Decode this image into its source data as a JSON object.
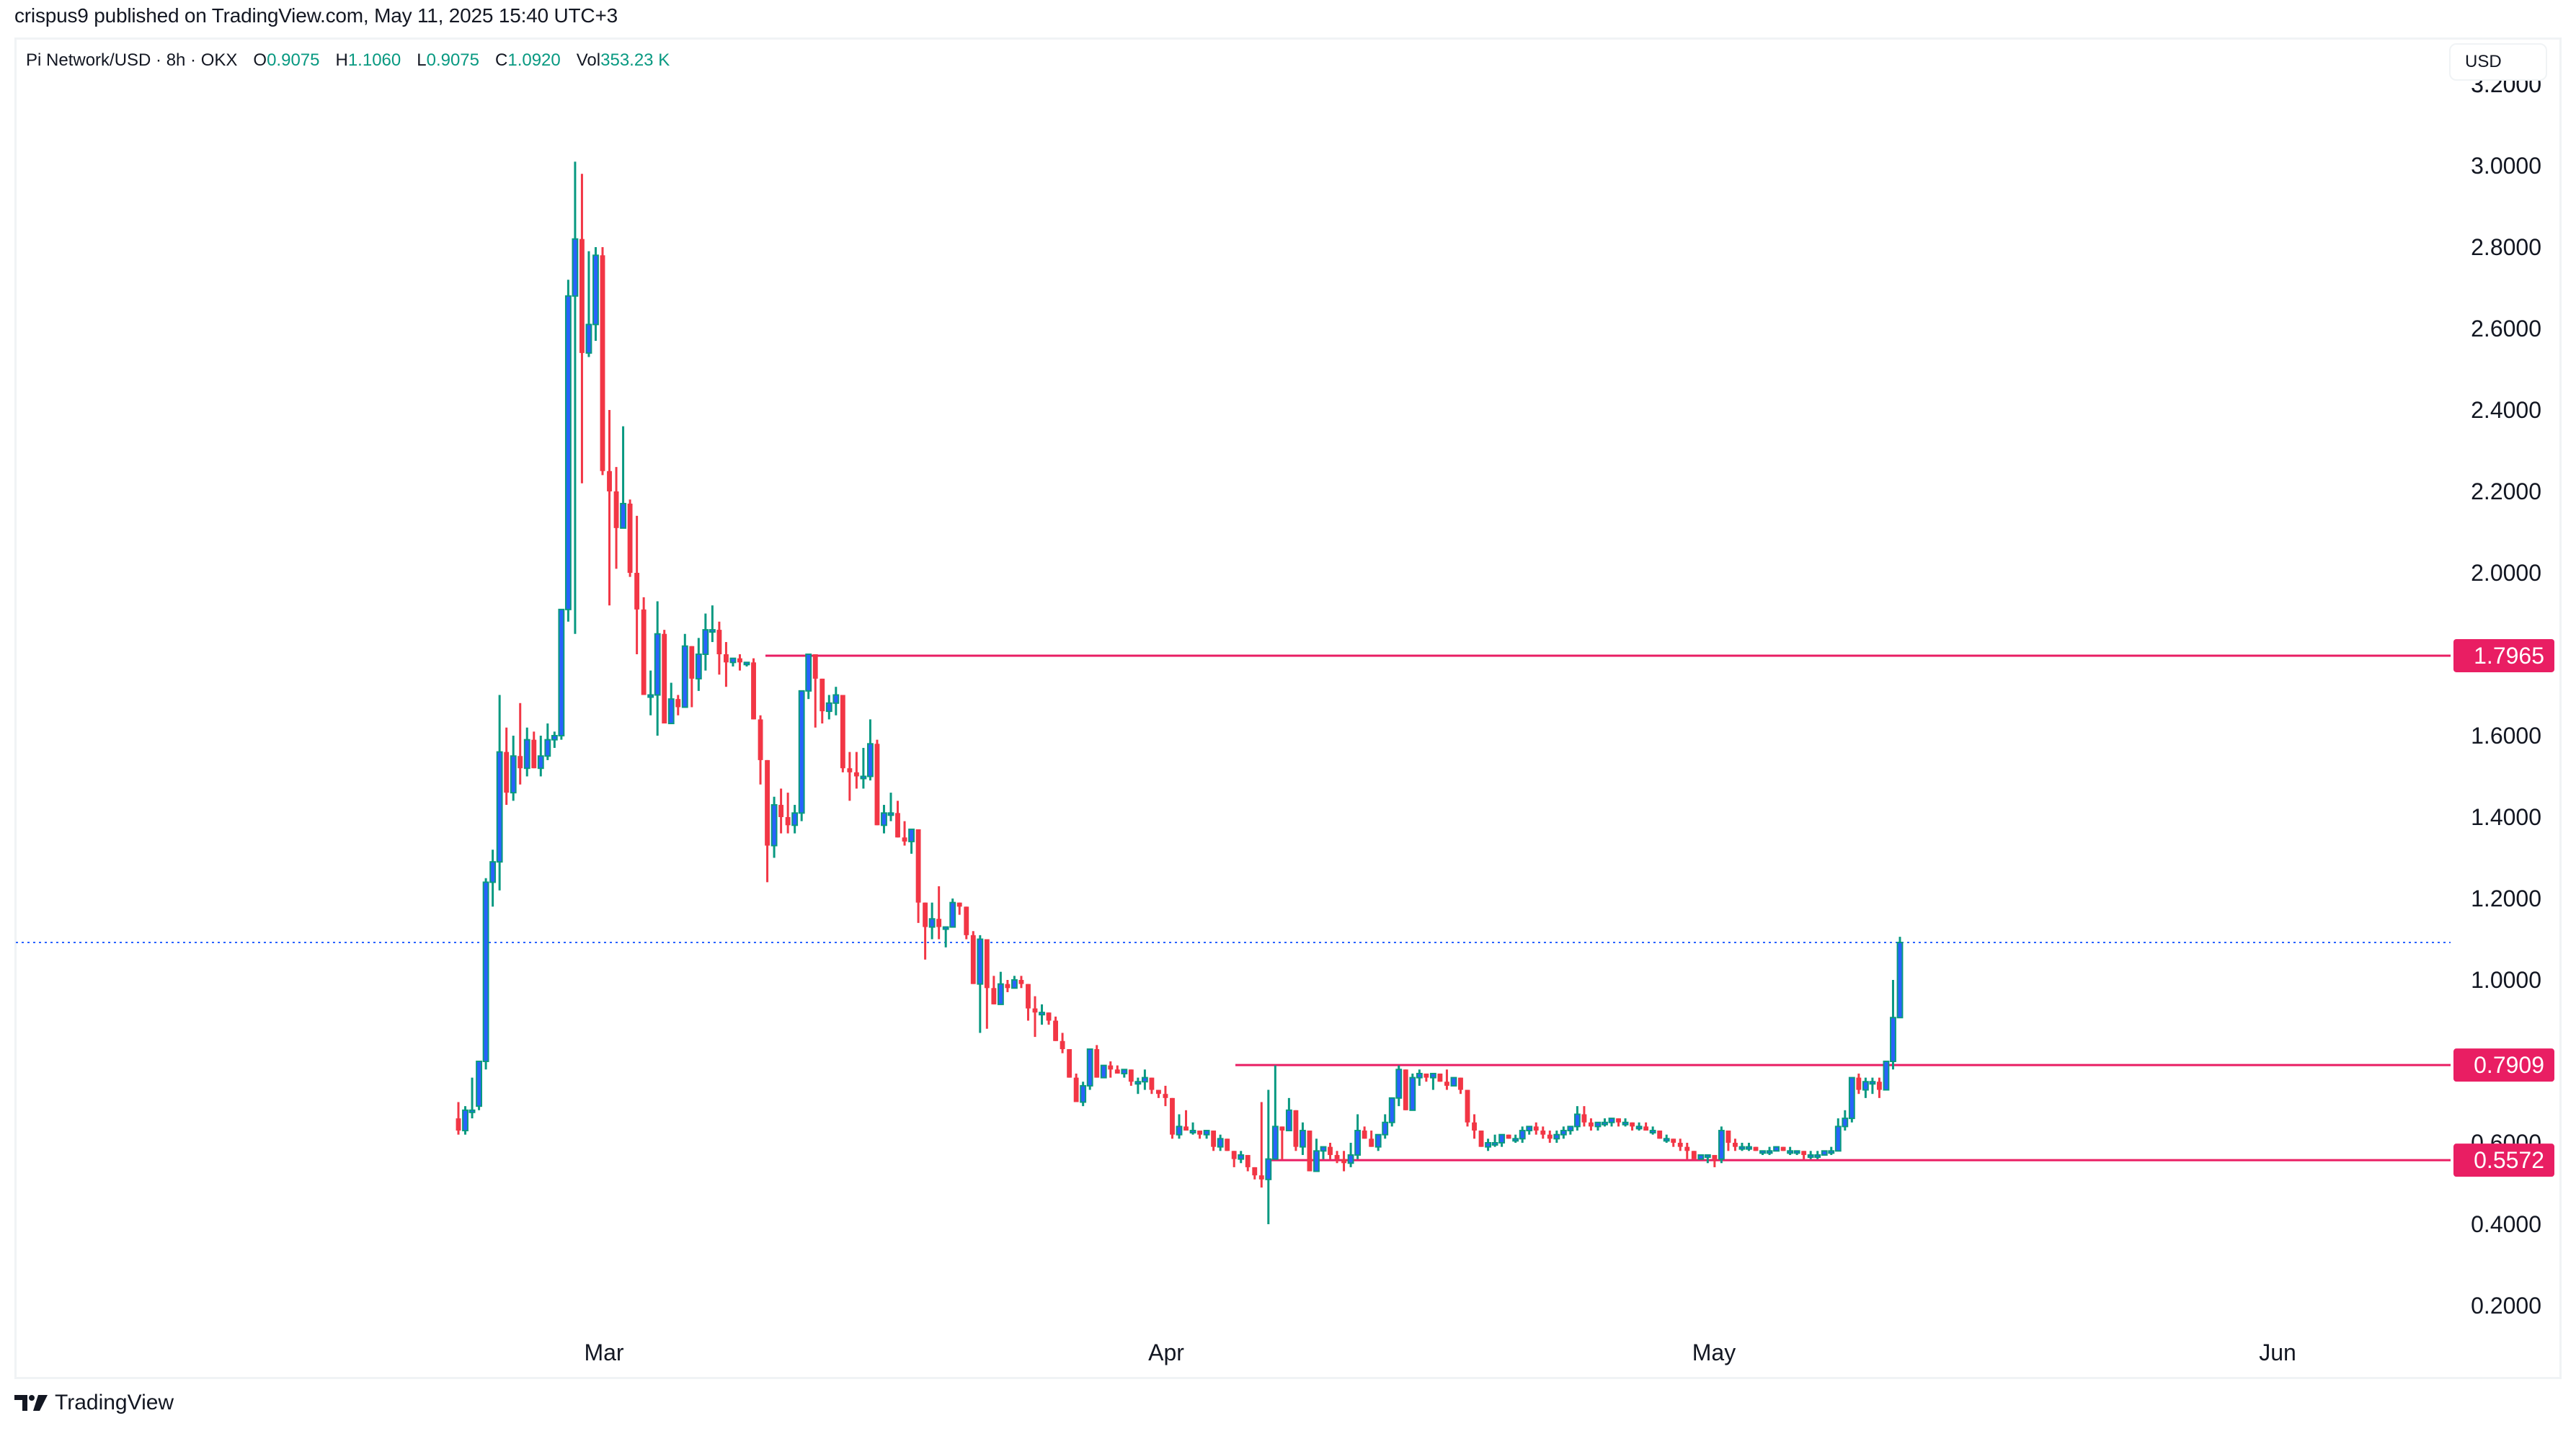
{
  "header": {
    "published": "crispus9 published on TradingView.com, May 11, 2025 15:40 UTC+3"
  },
  "legend": {
    "symbol": "Pi Network/USD · 8h · OKX",
    "o_label": "O",
    "o_value": "0.9075",
    "h_label": "H",
    "h_value": "1.1060",
    "l_label": "L",
    "l_value": "0.9075",
    "c_label": "C",
    "c_value": "1.0920",
    "vol_label": "Vol",
    "vol_value": "353.23 K"
  },
  "currency_button": "USD",
  "brand": {
    "name": "TradingView",
    "icon": "tradingview-logo-icon"
  },
  "colors": {
    "bull_body": "#2962ff",
    "bull_wick": "#089981",
    "bear": "#f23645",
    "level_line": "#e91e63",
    "last_price_line": "#2962ff",
    "legend_value": "#089981"
  },
  "chart_data": {
    "type": "candlestick",
    "title": "Pi Network/USD · 8h · OKX",
    "xlabel": "",
    "ylabel": "USD",
    "ylim": [
      0.2,
      3.2
    ],
    "y_ticks": [
      "3.2000",
      "3.0000",
      "2.8000",
      "2.6000",
      "2.4000",
      "2.2000",
      "2.0000",
      "1.6000",
      "1.4000",
      "1.2000",
      "1.0000",
      "0.6000",
      "0.4000",
      "0.2000"
    ],
    "x_ticks": [
      "Mar",
      "Apr",
      "May",
      "Jun"
    ],
    "grid": false,
    "last_price": 1.092,
    "horizontal_levels": [
      {
        "label": "1.7965",
        "value": 1.7965
      },
      {
        "label": "0.7909",
        "value": 0.7909
      },
      {
        "label": "0.5572",
        "value": 0.5572
      }
    ],
    "ohlc_last": {
      "open": 0.9075,
      "high": 1.106,
      "low": 0.9075,
      "close": 1.092,
      "volume": "353.23K"
    },
    "candles": [
      [
        0.66,
        0.7,
        0.62,
        0.63
      ],
      [
        0.63,
        0.69,
        0.62,
        0.68
      ],
      [
        0.68,
        0.76,
        0.66,
        0.68
      ],
      [
        0.69,
        0.79,
        0.68,
        0.8
      ],
      [
        0.8,
        1.25,
        0.78,
        1.24
      ],
      [
        1.24,
        1.32,
        1.18,
        1.29
      ],
      [
        1.29,
        1.7,
        1.22,
        1.56
      ],
      [
        1.56,
        1.62,
        1.43,
        1.46
      ],
      [
        1.46,
        1.6,
        1.44,
        1.55
      ],
      [
        1.55,
        1.68,
        1.48,
        1.52
      ],
      [
        1.52,
        1.62,
        1.5,
        1.59
      ],
      [
        1.59,
        1.61,
        1.52,
        1.52
      ],
      [
        1.52,
        1.6,
        1.5,
        1.55
      ],
      [
        1.55,
        1.63,
        1.54,
        1.59
      ],
      [
        1.59,
        1.61,
        1.57,
        1.6
      ],
      [
        1.6,
        1.91,
        1.59,
        1.91
      ],
      [
        1.91,
        2.72,
        1.88,
        2.68
      ],
      [
        2.68,
        3.01,
        1.85,
        2.82
      ],
      [
        2.82,
        2.98,
        2.22,
        2.54
      ],
      [
        2.54,
        2.79,
        2.53,
        2.61
      ],
      [
        2.61,
        2.8,
        2.57,
        2.78
      ],
      [
        2.78,
        2.8,
        2.24,
        2.25
      ],
      [
        2.25,
        2.4,
        1.92,
        2.2
      ],
      [
        2.2,
        2.26,
        2.01,
        2.11
      ],
      [
        2.11,
        2.36,
        2.12,
        2.17
      ],
      [
        2.17,
        2.18,
        1.99,
        2.0
      ],
      [
        2.0,
        2.14,
        1.8,
        1.91
      ],
      [
        1.91,
        1.94,
        1.71,
        1.7
      ],
      [
        1.7,
        1.76,
        1.65,
        1.7
      ],
      [
        1.7,
        1.93,
        1.6,
        1.85
      ],
      [
        1.85,
        1.86,
        1.66,
        1.63
      ],
      [
        1.63,
        1.73,
        1.64,
        1.69
      ],
      [
        1.69,
        1.7,
        1.65,
        1.67
      ],
      [
        1.67,
        1.85,
        1.68,
        1.82
      ],
      [
        1.82,
        1.82,
        1.67,
        1.74
      ],
      [
        1.74,
        1.84,
        1.71,
        1.8
      ],
      [
        1.8,
        1.9,
        1.76,
        1.86
      ],
      [
        1.86,
        1.92,
        1.83,
        1.86
      ],
      [
        1.86,
        1.88,
        1.75,
        1.8
      ],
      [
        1.8,
        1.83,
        1.72,
        1.78
      ],
      [
        1.78,
        1.79,
        1.77,
        1.79
      ],
      [
        1.79,
        1.8,
        1.76,
        1.78
      ],
      [
        1.78,
        1.78,
        1.77,
        1.78
      ],
      [
        1.78,
        1.79,
        1.64,
        1.64
      ],
      [
        1.64,
        1.65,
        1.48,
        1.54
      ],
      [
        1.54,
        1.54,
        1.24,
        1.33
      ],
      [
        1.33,
        1.45,
        1.3,
        1.43
      ],
      [
        1.43,
        1.47,
        1.36,
        1.4
      ],
      [
        1.4,
        1.46,
        1.36,
        1.38
      ],
      [
        1.38,
        1.43,
        1.36,
        1.41
      ],
      [
        1.41,
        1.63,
        1.39,
        1.71
      ],
      [
        1.71,
        1.79,
        1.69,
        1.8
      ],
      [
        1.8,
        1.79,
        1.62,
        1.74
      ],
      [
        1.74,
        1.71,
        1.63,
        1.66
      ],
      [
        1.66,
        1.7,
        1.64,
        1.68
      ],
      [
        1.68,
        1.72,
        1.65,
        1.7
      ],
      [
        1.7,
        1.7,
        1.51,
        1.52
      ],
      [
        1.52,
        1.56,
        1.44,
        1.51
      ],
      [
        1.51,
        1.56,
        1.47,
        1.5
      ],
      [
        1.5,
        1.57,
        1.47,
        1.5
      ],
      [
        1.5,
        1.64,
        1.49,
        1.58
      ],
      [
        1.58,
        1.59,
        1.38,
        1.38
      ],
      [
        1.38,
        1.43,
        1.36,
        1.41
      ],
      [
        1.41,
        1.46,
        1.39,
        1.41
      ],
      [
        1.41,
        1.44,
        1.38,
        1.35
      ],
      [
        1.35,
        1.39,
        1.33,
        1.34
      ],
      [
        1.34,
        1.36,
        1.31,
        1.37
      ],
      [
        1.37,
        1.37,
        1.14,
        1.19
      ],
      [
        1.19,
        1.19,
        1.05,
        1.13
      ],
      [
        1.13,
        1.19,
        1.1,
        1.15
      ],
      [
        1.15,
        1.23,
        1.1,
        1.13
      ],
      [
        1.13,
        1.12,
        1.08,
        1.13
      ],
      [
        1.13,
        1.2,
        1.13,
        1.19
      ],
      [
        1.19,
        1.18,
        1.16,
        1.18
      ],
      [
        1.18,
        1.17,
        1.1,
        1.11
      ],
      [
        1.11,
        1.12,
        0.99,
        0.99
      ],
      [
        0.99,
        1.11,
        0.87,
        1.1
      ],
      [
        1.1,
        1.09,
        0.88,
        0.98
      ],
      [
        0.98,
        1.01,
        0.95,
        0.94
      ],
      [
        0.94,
        1.02,
        0.94,
        0.99
      ],
      [
        0.99,
        1.0,
        0.97,
        0.98
      ],
      [
        0.98,
        1.01,
        0.99,
        1.0
      ],
      [
        1.0,
        1.01,
        0.98,
        0.99
      ],
      [
        0.99,
        0.99,
        0.9,
        0.93
      ],
      [
        0.93,
        0.96,
        0.86,
        0.92
      ],
      [
        0.92,
        0.94,
        0.89,
        0.92
      ],
      [
        0.92,
        0.92,
        0.89,
        0.9
      ],
      [
        0.9,
        0.91,
        0.85,
        0.85
      ],
      [
        0.85,
        0.87,
        0.82,
        0.83
      ],
      [
        0.83,
        0.83,
        0.78,
        0.76
      ],
      [
        0.76,
        0.77,
        0.7,
        0.7
      ],
      [
        0.7,
        0.75,
        0.69,
        0.74
      ],
      [
        0.74,
        0.81,
        0.73,
        0.83
      ],
      [
        0.83,
        0.84,
        0.77,
        0.76
      ],
      [
        0.76,
        0.79,
        0.76,
        0.79
      ],
      [
        0.79,
        0.8,
        0.76,
        0.78
      ],
      [
        0.78,
        0.79,
        0.77,
        0.77
      ],
      [
        0.77,
        0.78,
        0.76,
        0.78
      ],
      [
        0.78,
        0.78,
        0.74,
        0.75
      ],
      [
        0.75,
        0.76,
        0.72,
        0.75
      ],
      [
        0.75,
        0.78,
        0.73,
        0.76
      ],
      [
        0.76,
        0.76,
        0.72,
        0.73
      ],
      [
        0.73,
        0.73,
        0.71,
        0.72
      ],
      [
        0.72,
        0.74,
        0.69,
        0.71
      ],
      [
        0.71,
        0.71,
        0.61,
        0.62
      ],
      [
        0.62,
        0.67,
        0.61,
        0.64
      ],
      [
        0.64,
        0.68,
        0.63,
        0.63
      ],
      [
        0.63,
        0.65,
        0.62,
        0.63
      ],
      [
        0.63,
        0.63,
        0.61,
        0.62
      ],
      [
        0.62,
        0.63,
        0.61,
        0.63
      ],
      [
        0.63,
        0.63,
        0.58,
        0.59
      ],
      [
        0.59,
        0.62,
        0.58,
        0.61
      ],
      [
        0.61,
        0.61,
        0.58,
        0.58
      ],
      [
        0.58,
        0.58,
        0.54,
        0.56
      ],
      [
        0.56,
        0.58,
        0.55,
        0.57
      ],
      [
        0.57,
        0.57,
        0.53,
        0.54
      ],
      [
        0.54,
        0.54,
        0.51,
        0.52
      ],
      [
        0.52,
        0.7,
        0.49,
        0.51
      ],
      [
        0.51,
        0.73,
        0.4,
        0.56
      ],
      [
        0.56,
        0.79,
        0.6,
        0.64
      ],
      [
        0.64,
        0.64,
        0.56,
        0.63
      ],
      [
        0.63,
        0.71,
        0.63,
        0.68
      ],
      [
        0.68,
        0.68,
        0.58,
        0.59
      ],
      [
        0.59,
        0.65,
        0.57,
        0.63
      ],
      [
        0.63,
        0.6,
        0.55,
        0.53
      ],
      [
        0.53,
        0.61,
        0.54,
        0.58
      ],
      [
        0.58,
        0.59,
        0.56,
        0.59
      ],
      [
        0.59,
        0.6,
        0.56,
        0.57
      ],
      [
        0.57,
        0.58,
        0.55,
        0.56
      ],
      [
        0.56,
        0.58,
        0.53,
        0.55
      ],
      [
        0.55,
        0.6,
        0.54,
        0.57
      ],
      [
        0.57,
        0.67,
        0.56,
        0.63
      ],
      [
        0.63,
        0.64,
        0.61,
        0.61
      ],
      [
        0.61,
        0.63,
        0.59,
        0.59
      ],
      [
        0.59,
        0.62,
        0.58,
        0.62
      ],
      [
        0.62,
        0.67,
        0.61,
        0.65
      ],
      [
        0.65,
        0.7,
        0.64,
        0.71
      ],
      [
        0.71,
        0.79,
        0.69,
        0.78
      ],
      [
        0.78,
        0.77,
        0.7,
        0.68
      ],
      [
        0.68,
        0.77,
        0.69,
        0.76
      ],
      [
        0.76,
        0.78,
        0.74,
        0.77
      ],
      [
        0.77,
        0.77,
        0.75,
        0.76
      ],
      [
        0.76,
        0.77,
        0.73,
        0.77
      ],
      [
        0.77,
        0.77,
        0.75,
        0.75
      ],
      [
        0.75,
        0.78,
        0.73,
        0.74
      ],
      [
        0.74,
        0.74,
        0.75,
        0.76
      ],
      [
        0.76,
        0.75,
        0.72,
        0.73
      ],
      [
        0.73,
        0.73,
        0.64,
        0.65
      ],
      [
        0.65,
        0.67,
        0.61,
        0.63
      ],
      [
        0.63,
        0.63,
        0.59,
        0.59
      ],
      [
        0.59,
        0.61,
        0.58,
        0.6
      ],
      [
        0.6,
        0.62,
        0.59,
        0.6
      ],
      [
        0.6,
        0.61,
        0.59,
        0.62
      ],
      [
        0.62,
        0.62,
        0.61,
        0.61
      ],
      [
        0.61,
        0.62,
        0.6,
        0.61
      ],
      [
        0.61,
        0.64,
        0.6,
        0.63
      ],
      [
        0.63,
        0.64,
        0.62,
        0.64
      ],
      [
        0.64,
        0.65,
        0.62,
        0.63
      ],
      [
        0.63,
        0.64,
        0.61,
        0.62
      ],
      [
        0.62,
        0.63,
        0.6,
        0.61
      ],
      [
        0.61,
        0.63,
        0.6,
        0.62
      ],
      [
        0.62,
        0.64,
        0.61,
        0.63
      ],
      [
        0.63,
        0.64,
        0.62,
        0.64
      ],
      [
        0.64,
        0.69,
        0.63,
        0.67
      ],
      [
        0.67,
        0.69,
        0.64,
        0.65
      ],
      [
        0.65,
        0.66,
        0.63,
        0.64
      ],
      [
        0.64,
        0.65,
        0.63,
        0.65
      ],
      [
        0.65,
        0.66,
        0.64,
        0.65
      ],
      [
        0.65,
        0.66,
        0.64,
        0.66
      ],
      [
        0.66,
        0.66,
        0.64,
        0.65
      ],
      [
        0.65,
        0.66,
        0.64,
        0.65
      ],
      [
        0.65,
        0.65,
        0.63,
        0.64
      ],
      [
        0.64,
        0.65,
        0.63,
        0.64
      ],
      [
        0.64,
        0.65,
        0.63,
        0.63
      ],
      [
        0.63,
        0.64,
        0.62,
        0.63
      ],
      [
        0.63,
        0.63,
        0.61,
        0.61
      ],
      [
        0.61,
        0.62,
        0.6,
        0.61
      ],
      [
        0.61,
        0.61,
        0.59,
        0.6
      ],
      [
        0.6,
        0.61,
        0.58,
        0.59
      ],
      [
        0.59,
        0.6,
        0.56,
        0.58
      ],
      [
        0.58,
        0.58,
        0.56,
        0.56
      ],
      [
        0.56,
        0.57,
        0.57,
        0.57
      ],
      [
        0.57,
        0.57,
        0.55,
        0.57
      ],
      [
        0.57,
        0.57,
        0.54,
        0.56
      ],
      [
        0.56,
        0.64,
        0.55,
        0.63
      ],
      [
        0.63,
        0.63,
        0.58,
        0.6
      ],
      [
        0.6,
        0.61,
        0.58,
        0.59
      ],
      [
        0.59,
        0.6,
        0.58,
        0.59
      ],
      [
        0.59,
        0.6,
        0.58,
        0.59
      ],
      [
        0.59,
        0.59,
        0.58,
        0.58
      ],
      [
        0.58,
        0.58,
        0.57,
        0.58
      ],
      [
        0.58,
        0.59,
        0.57,
        0.58
      ],
      [
        0.58,
        0.59,
        0.58,
        0.59
      ],
      [
        0.59,
        0.59,
        0.58,
        0.58
      ],
      [
        0.58,
        0.59,
        0.57,
        0.58
      ],
      [
        0.58,
        0.58,
        0.57,
        0.58
      ],
      [
        0.58,
        0.58,
        0.56,
        0.57
      ],
      [
        0.57,
        0.58,
        0.56,
        0.57
      ],
      [
        0.57,
        0.58,
        0.56,
        0.57
      ],
      [
        0.57,
        0.58,
        0.57,
        0.58
      ],
      [
        0.58,
        0.59,
        0.57,
        0.58
      ],
      [
        0.58,
        0.66,
        0.58,
        0.64
      ],
      [
        0.64,
        0.68,
        0.63,
        0.66
      ],
      [
        0.66,
        0.75,
        0.65,
        0.76
      ],
      [
        0.76,
        0.77,
        0.72,
        0.73
      ],
      [
        0.73,
        0.76,
        0.71,
        0.75
      ],
      [
        0.75,
        0.76,
        0.72,
        0.75
      ],
      [
        0.75,
        0.76,
        0.71,
        0.73
      ],
      [
        0.73,
        0.8,
        0.73,
        0.8
      ],
      [
        0.8,
        1.0,
        0.78,
        0.9075
      ],
      [
        0.9075,
        1.106,
        0.9075,
        1.092
      ]
    ]
  }
}
